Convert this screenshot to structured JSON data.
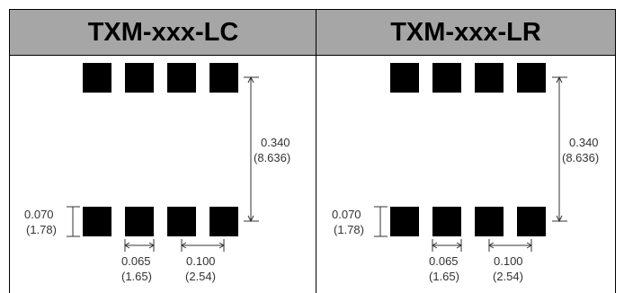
{
  "headers": {
    "left": "TXM-xxx-LC",
    "right": "TXM-xxx-LR"
  },
  "dimensions": {
    "height_in": "0.340",
    "height_mm": "(8.636)",
    "pad_height_in": "0.070",
    "pad_height_mm": "(1.78)",
    "pad_width_in": "0.065",
    "pad_width_mm": "(1.65)",
    "pitch_in": "0.100",
    "pitch_mm": "(2.54)"
  }
}
